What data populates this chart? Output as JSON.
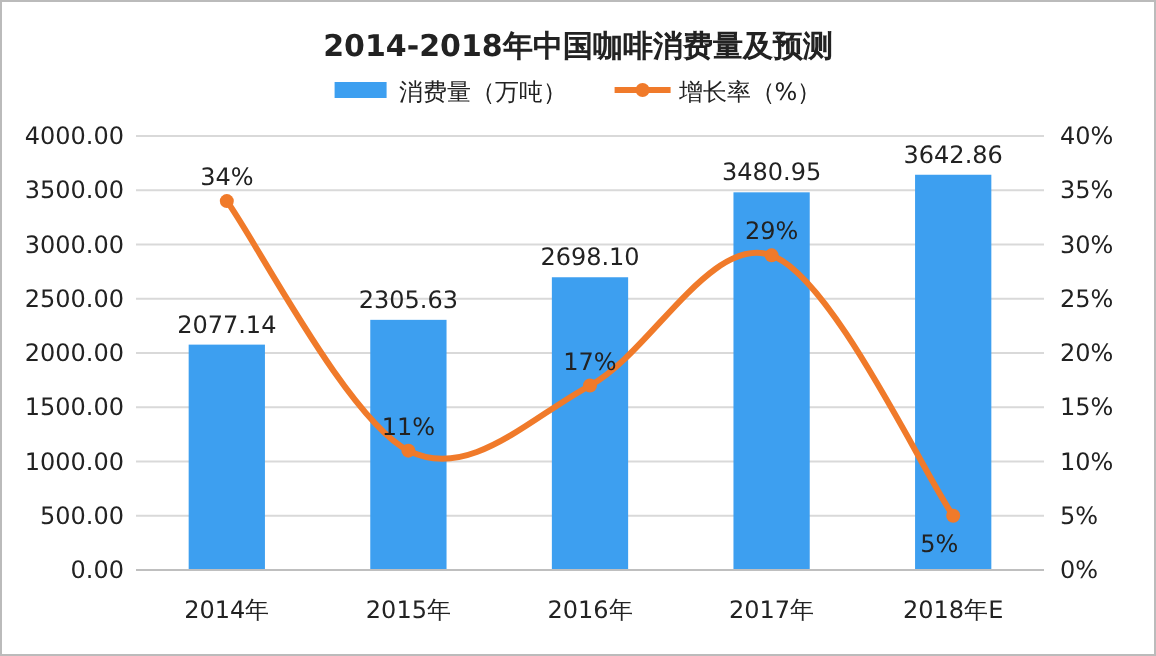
{
  "chart_data": {
    "type": "bar",
    "title": "2014-2018年中国咖啡消费量及预测",
    "categories": [
      "2014年",
      "2015年",
      "2016年",
      "2017年",
      "2018年E"
    ],
    "series": [
      {
        "name": "消费量（万吨）",
        "color": "#3d9ff0",
        "values": [
          2077.14,
          2305.63,
          2698.1,
          3480.95,
          3642.86
        ],
        "value_labels": [
          "2077.14",
          "2305.63",
          "2698.10",
          "3480.95",
          "3642.86"
        ]
      },
      {
        "name": "增长率（%）",
        "type": "line",
        "axis": "y2",
        "color": "#f07a2a",
        "values": [
          34,
          11,
          17,
          29,
          5
        ],
        "value_labels": [
          "34%",
          "11%",
          "17%",
          "29%",
          "5%"
        ],
        "marker": "circle"
      }
    ],
    "ylim": [
      0,
      4000
    ],
    "yticks": [
      {
        "value": 0,
        "label": "0.00"
      },
      {
        "value": 500,
        "label": "500.00"
      },
      {
        "value": 1000,
        "label": "1000.00"
      },
      {
        "value": 1500,
        "label": "1500.00"
      },
      {
        "value": 2000,
        "label": "2000.00"
      },
      {
        "value": 2500,
        "label": "2500.00"
      },
      {
        "value": 3000,
        "label": "3000.00"
      },
      {
        "value": 3500,
        "label": "3500.00"
      },
      {
        "value": 4000,
        "label": "4000.00"
      }
    ],
    "y2lim": [
      0,
      40
    ],
    "y2ticks": [
      {
        "value": 0,
        "label": "0%"
      },
      {
        "value": 5,
        "label": "5%"
      },
      {
        "value": 10,
        "label": "10%"
      },
      {
        "value": 15,
        "label": "15%"
      },
      {
        "value": 20,
        "label": "20%"
      },
      {
        "value": 25,
        "label": "25%"
      },
      {
        "value": 30,
        "label": "30%"
      },
      {
        "value": 35,
        "label": "35%"
      },
      {
        "value": 40,
        "label": "40%"
      }
    ],
    "grid": "y",
    "legend": "top"
  }
}
